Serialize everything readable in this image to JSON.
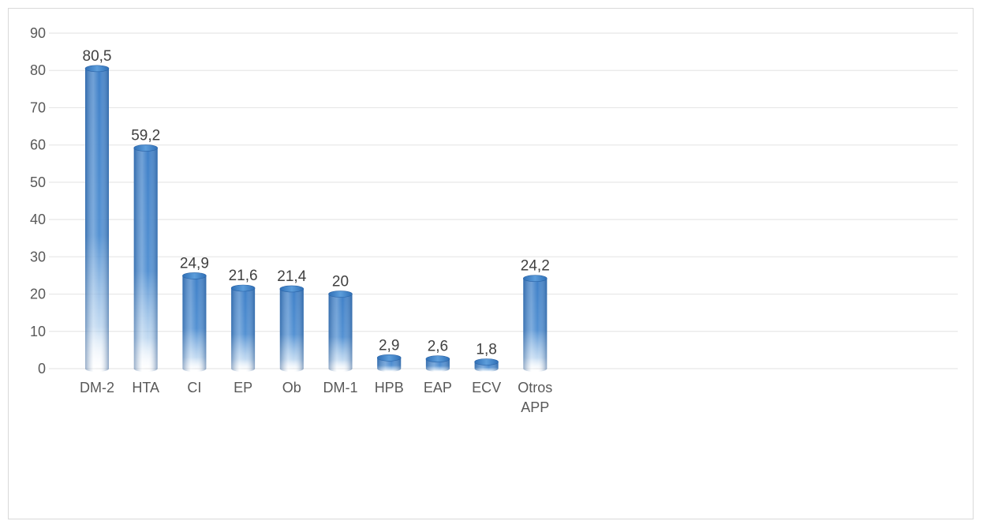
{
  "chart_data": {
    "type": "bar",
    "categories": [
      "DM-2",
      "HTA",
      "CI",
      "EP",
      "Ob",
      "DM-1",
      "HPB",
      "EAP",
      "ECV",
      "Otros APP"
    ],
    "category_lines": [
      [
        "DM-2"
      ],
      [
        "HTA"
      ],
      [
        "CI"
      ],
      [
        "EP"
      ],
      [
        "Ob"
      ],
      [
        "DM-1"
      ],
      [
        "HPB"
      ],
      [
        "EAP"
      ],
      [
        "ECV"
      ],
      [
        "Otros",
        "APP"
      ]
    ],
    "values": [
      80.5,
      59.2,
      24.9,
      21.6,
      21.4,
      20,
      2.9,
      2.6,
      1.8,
      24.2
    ],
    "value_labels": [
      "80,5",
      "59,2",
      "24,9",
      "21,6",
      "21,4",
      "20",
      "2,9",
      "2,6",
      "1,8",
      "24,2"
    ],
    "y_ticks": [
      0,
      10,
      20,
      30,
      40,
      50,
      60,
      70,
      80,
      90
    ],
    "ylim": [
      0,
      90
    ],
    "title": "",
    "xlabel": "",
    "ylabel": "",
    "grid": true,
    "legend": "none",
    "colors": {
      "bar_dark": "#2e6db4",
      "bar_mid": "#5b9bd5",
      "bar_light": "#a9cbeb",
      "grid": "#e7e7e7",
      "border": "#d9d9d9",
      "tick_text": "#595959",
      "label_text": "#404040"
    }
  }
}
